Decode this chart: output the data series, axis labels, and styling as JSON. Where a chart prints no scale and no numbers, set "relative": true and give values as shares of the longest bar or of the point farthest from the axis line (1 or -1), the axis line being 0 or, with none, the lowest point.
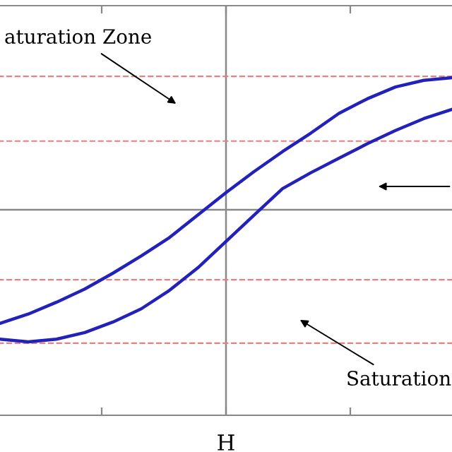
{
  "chart_data": {
    "type": "line",
    "relative": true,
    "xlabel": "H",
    "categories": [
      null,
      null,
      null,
      null,
      null,
      null,
      null,
      null,
      null,
      null,
      null,
      null,
      null,
      null,
      null,
      null,
      null
    ],
    "series": [
      {
        "color": "#2222bb",
        "values": [
          -0.86,
          -0.79,
          -0.7,
          -0.6,
          -0.48,
          -0.35,
          -0.21,
          -0.04,
          0.13,
          0.29,
          0.44,
          0.58,
          0.73,
          0.84,
          0.93,
          0.98,
          1.0
        ]
      },
      {
        "color": "#2222bb",
        "values": [
          -0.98,
          -1.0,
          -0.98,
          -0.93,
          -0.85,
          -0.75,
          -0.61,
          -0.44,
          -0.24,
          -0.04,
          0.16,
          0.28,
          0.39,
          0.5,
          0.6,
          0.69,
          0.76
        ]
      }
    ],
    "ref_lines": [
      {
        "axis": "y",
        "value": 1.01,
        "color": "#e88080",
        "line_style": "dashed"
      },
      {
        "axis": "y",
        "value": 0.52,
        "color": "#e88080",
        "line_style": "dashed"
      },
      {
        "axis": "y",
        "value": -0.53,
        "color": "#e88080",
        "line_style": "dashed"
      },
      {
        "axis": "y",
        "value": -1.01,
        "color": "#e88080",
        "line_style": "dashed"
      }
    ],
    "annotations": [
      "aturation Zone",
      "Saturation"
    ],
    "grid": false,
    "legend": false,
    "line_style": "solid",
    "marker": "none"
  }
}
